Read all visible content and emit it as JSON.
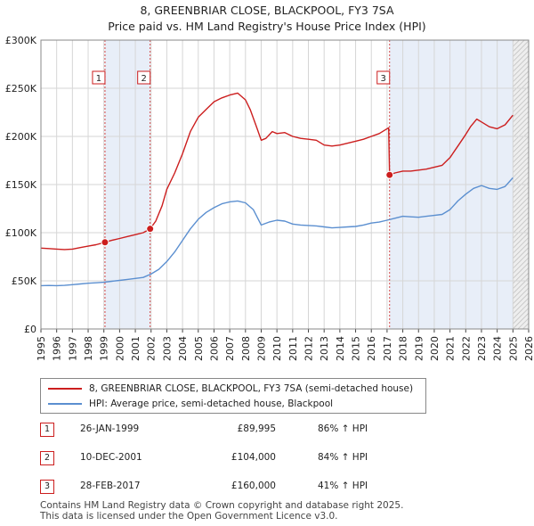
{
  "title": "8, GREENBRIAR CLOSE, BLACKPOOL, FY3 7SA",
  "subtitle": "Price paid vs. HM Land Registry's House Price Index (HPI)",
  "colors": {
    "property": "#cc1e1e",
    "hpi": "#5b8fd0",
    "shade": "#e8eef8",
    "grid": "#d6d6d6",
    "marker_line": "#cc1e1e"
  },
  "legend": {
    "property_label": "8, GREENBRIAR CLOSE, BLACKPOOL, FY3 7SA (semi-detached house)",
    "hpi_label": "HPI: Average price, semi-detached house, Blackpool"
  },
  "sales": [
    {
      "num": "1",
      "date": "26-JAN-1999",
      "price": "£89,995",
      "hpi": "86% ↑ HPI"
    },
    {
      "num": "2",
      "date": "10-DEC-2001",
      "price": "£104,000",
      "hpi": "84% ↑ HPI"
    },
    {
      "num": "3",
      "date": "28-FEB-2017",
      "price": "£160,000",
      "hpi": "41% ↑ HPI"
    }
  ],
  "footer": {
    "line1": "Contains HM Land Registry data © Crown copyright and database right 2025.",
    "line2": "This data is licensed under the Open Government Licence v3.0."
  },
  "chart_data": {
    "type": "line",
    "x_range": [
      1995,
      2026
    ],
    "ylim": [
      0,
      300000
    ],
    "y_ticks": [
      {
        "value": 0,
        "label": "£0"
      },
      {
        "value": 50000,
        "label": "£50K"
      },
      {
        "value": 100000,
        "label": "£100K"
      },
      {
        "value": 150000,
        "label": "£150K"
      },
      {
        "value": 200000,
        "label": "£200K"
      },
      {
        "value": 250000,
        "label": "£250K"
      },
      {
        "value": 300000,
        "label": "£300K"
      }
    ],
    "x_ticks": [
      "1995",
      "1996",
      "1997",
      "1998",
      "1999",
      "2000",
      "2001",
      "2002",
      "2003",
      "2004",
      "2005",
      "2006",
      "2007",
      "2008",
      "2009",
      "2010",
      "2011",
      "2012",
      "2013",
      "2014",
      "2015",
      "2016",
      "2017",
      "2018",
      "2019",
      "2020",
      "2021",
      "2022",
      "2023",
      "2024",
      "2025",
      "2026"
    ],
    "shaded_ranges": [
      [
        1999.07,
        2001.94
      ],
      [
        2017.16,
        2025.0
      ]
    ],
    "hatched_from": 2025.0,
    "markers": [
      {
        "label": "1",
        "x": 1999.07,
        "y": 89995
      },
      {
        "label": "2",
        "x": 2001.94,
        "y": 104000
      },
      {
        "label": "3",
        "x": 2017.16,
        "y": 160000
      }
    ],
    "series": [
      {
        "name": "8, GREENBRIAR CLOSE, BLACKPOOL, FY3 7SA (semi-detached house)",
        "x": [
          1995.0,
          1995.5,
          1996.0,
          1996.5,
          1997.0,
          1997.5,
          1998.0,
          1998.5,
          1999.07,
          1999.5,
          2000.0,
          2000.5,
          2001.0,
          2001.5,
          2001.94,
          2002.3,
          2002.7,
          2003.0,
          2003.5,
          2004.0,
          2004.5,
          2005.0,
          2005.5,
          2006.0,
          2006.5,
          2007.0,
          2007.5,
          2008.0,
          2008.3,
          2008.7,
          2009.0,
          2009.3,
          2009.7,
          2010.0,
          2010.5,
          2011.0,
          2011.5,
          2012.0,
          2012.5,
          2013.0,
          2013.5,
          2014.0,
          2014.5,
          2015.0,
          2015.5,
          2016.0,
          2016.5,
          2017.1,
          2017.16,
          2017.5,
          2018.0,
          2018.5,
          2019.0,
          2019.5,
          2020.0,
          2020.5,
          2021.0,
          2021.5,
          2022.0,
          2022.3,
          2022.7,
          2023.0,
          2023.5,
          2024.0,
          2024.5,
          2025.0
        ],
        "values": [
          84000,
          83500,
          83000,
          82500,
          83000,
          84500,
          86000,
          87500,
          89995,
          92000,
          94000,
          96000,
          98000,
          100000,
          104000,
          112000,
          128000,
          145000,
          162000,
          182000,
          205000,
          220000,
          228000,
          236000,
          240000,
          243000,
          245000,
          238000,
          228000,
          210000,
          196000,
          198000,
          205000,
          203000,
          204000,
          200000,
          198000,
          197000,
          196000,
          191000,
          190000,
          191000,
          193000,
          195000,
          197000,
          200000,
          203000,
          209000,
          160000,
          162000,
          164000,
          164000,
          165000,
          166000,
          168000,
          170000,
          178000,
          190000,
          202000,
          210000,
          218000,
          215000,
          210000,
          208000,
          212000,
          222000
        ]
      },
      {
        "name": "HPI: Average price, semi-detached house, Blackpool",
        "x": [
          1995.0,
          1995.5,
          1996.0,
          1996.5,
          1997.0,
          1997.5,
          1998.0,
          1998.5,
          1999.0,
          1999.5,
          2000.0,
          2000.5,
          2001.0,
          2001.5,
          2002.0,
          2002.5,
          2003.0,
          2003.5,
          2004.0,
          2004.5,
          2005.0,
          2005.5,
          2006.0,
          2006.5,
          2007.0,
          2007.5,
          2008.0,
          2008.5,
          2009.0,
          2009.5,
          2010.0,
          2010.5,
          2011.0,
          2011.5,
          2012.0,
          2012.5,
          2013.0,
          2013.5,
          2014.0,
          2014.5,
          2015.0,
          2015.5,
          2016.0,
          2016.5,
          2017.0,
          2017.5,
          2018.0,
          2018.5,
          2019.0,
          2019.5,
          2020.0,
          2020.5,
          2021.0,
          2021.5,
          2022.0,
          2022.5,
          2023.0,
          2023.5,
          2024.0,
          2024.5,
          2025.0
        ],
        "values": [
          45000,
          45200,
          45000,
          45300,
          46000,
          46800,
          47500,
          48000,
          48500,
          49500,
          50500,
          51500,
          52500,
          53500,
          57000,
          62000,
          70000,
          80000,
          92000,
          104000,
          114000,
          121000,
          126000,
          130000,
          132000,
          133000,
          131000,
          124000,
          108000,
          111000,
          113000,
          112000,
          109000,
          108000,
          107500,
          107000,
          106000,
          105000,
          105500,
          106000,
          106500,
          108000,
          110000,
          111000,
          113000,
          115000,
          117000,
          116500,
          116000,
          117000,
          118000,
          119000,
          124000,
          133000,
          140000,
          146000,
          149000,
          146000,
          145000,
          148000,
          157000
        ]
      }
    ]
  }
}
